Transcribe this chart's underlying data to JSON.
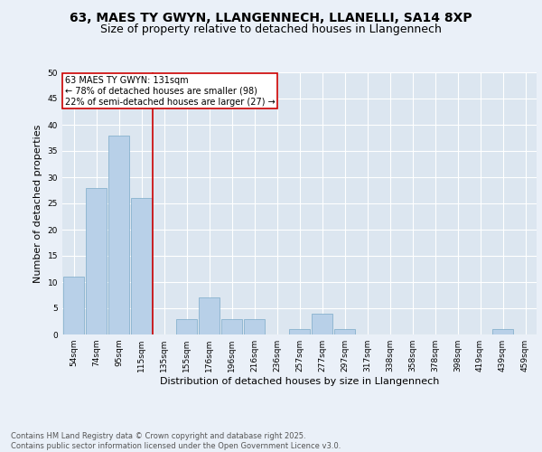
{
  "title1": "63, MAES TY GWYN, LLANGENNECH, LLANELLI, SA14 8XP",
  "title2": "Size of property relative to detached houses in Llangennech",
  "xlabel": "Distribution of detached houses by size in Llangennech",
  "ylabel": "Number of detached properties",
  "categories": [
    "54sqm",
    "74sqm",
    "95sqm",
    "115sqm",
    "135sqm",
    "155sqm",
    "176sqm",
    "196sqm",
    "216sqm",
    "236sqm",
    "257sqm",
    "277sqm",
    "297sqm",
    "317sqm",
    "338sqm",
    "358sqm",
    "378sqm",
    "398sqm",
    "419sqm",
    "439sqm",
    "459sqm"
  ],
  "values": [
    11,
    28,
    38,
    26,
    0,
    3,
    7,
    3,
    3,
    0,
    1,
    4,
    1,
    0,
    0,
    0,
    0,
    0,
    0,
    1,
    0
  ],
  "bar_color": "#b8d0e8",
  "bar_edge_color": "#7aaac8",
  "background_color": "#eaf0f8",
  "plot_bg_color": "#dce6f0",
  "grid_color": "#ffffff",
  "ref_line_color": "#cc0000",
  "annotation_text": "63 MAES TY GWYN: 131sqm\n← 78% of detached houses are smaller (98)\n22% of semi-detached houses are larger (27) →",
  "annotation_box_color": "#cc0000",
  "ylim": [
    0,
    50
  ],
  "yticks": [
    0,
    5,
    10,
    15,
    20,
    25,
    30,
    35,
    40,
    45,
    50
  ],
  "footer": "Contains HM Land Registry data © Crown copyright and database right 2025.\nContains public sector information licensed under the Open Government Licence v3.0.",
  "title_fontsize": 10,
  "subtitle_fontsize": 9,
  "axis_label_fontsize": 8,
  "tick_fontsize": 6.5,
  "annotation_fontsize": 7
}
